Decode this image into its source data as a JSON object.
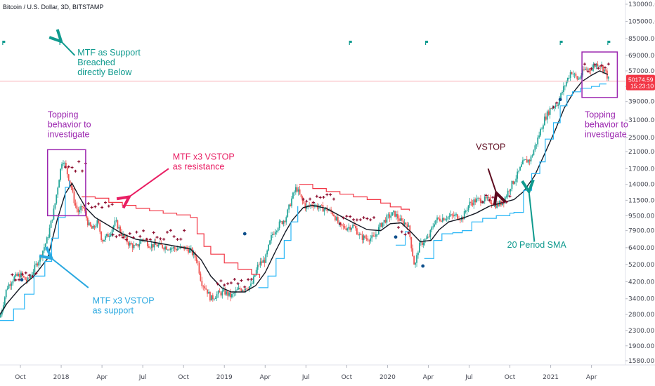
{
  "chart_data": {
    "type": "candlestick",
    "title": "Bitcoin / U.S. Dollar, 3D, BITSTAMP",
    "y_scale": "log",
    "ylim": [
      1500,
      130000
    ],
    "y_ticks": [
      "130000.00",
      "105000.00",
      "85000.00",
      "69000.00",
      "57000.00",
      "47000.00",
      "39000.00",
      "31000.00",
      "25000.00",
      "21000.00",
      "17000.00",
      "14000.00",
      "11500.00",
      "9500.00",
      "7900.00",
      "6400.00",
      "5200.00",
      "4200.00",
      "3400.00",
      "2800.00",
      "2300.00",
      "1900.00",
      "1580.00"
    ],
    "x_ticks": [
      "Oct",
      "2018",
      "Apr",
      "Jul",
      "Oct",
      "2019",
      "Apr",
      "Jul",
      "Oct",
      "2020",
      "Apr",
      "Jul",
      "Oct",
      "2021",
      "Apr"
    ],
    "x_tick_months": [
      0,
      3,
      6,
      9,
      12,
      15,
      18,
      21,
      24,
      27,
      30,
      33,
      36,
      39,
      42
    ],
    "x_range_months": [
      -1.5,
      44.5
    ],
    "last_price": {
      "price": "50174.59",
      "countdown": "15:23:10",
      "value": 50174.59,
      "color": "#f23645"
    },
    "price_series": [
      [
        -1.5,
        2700
      ],
      [
        -1,
        3900
      ],
      [
        -0.5,
        4400
      ],
      [
        0,
        4600
      ],
      [
        0.5,
        4200
      ],
      [
        1,
        4900
      ],
      [
        1.5,
        5800
      ],
      [
        2,
        7200
      ],
      [
        2.5,
        10500
      ],
      [
        2.8,
        14500
      ],
      [
        3.1,
        19500
      ],
      [
        3.4,
        16500
      ],
      [
        3.7,
        14000
      ],
      [
        4,
        11000
      ],
      [
        4.3,
        9800
      ],
      [
        4.6,
        10800
      ],
      [
        5,
        8500
      ],
      [
        5.3,
        8000
      ],
      [
        5.7,
        8800
      ],
      [
        6,
        7000
      ],
      [
        6.5,
        7500
      ],
      [
        7,
        8800
      ],
      [
        7.5,
        7500
      ],
      [
        8,
        6700
      ],
      [
        8.5,
        6400
      ],
      [
        9,
        7200
      ],
      [
        9.5,
        6600
      ],
      [
        10,
        6600
      ],
      [
        10.5,
        6500
      ],
      [
        11,
        6400
      ],
      [
        11.5,
        6300
      ],
      [
        12,
        6400
      ],
      [
        12.5,
        6200
      ],
      [
        13,
        5500
      ],
      [
        13.3,
        4200
      ],
      [
        13.7,
        3800
      ],
      [
        14,
        3400
      ],
      [
        14.5,
        3600
      ],
      [
        15,
        3700
      ],
      [
        15.5,
        3500
      ],
      [
        16,
        3800
      ],
      [
        16.5,
        3900
      ],
      [
        17,
        4000
      ],
      [
        17.5,
        5200
      ],
      [
        18,
        5500
      ],
      [
        18.5,
        7500
      ],
      [
        19,
        8500
      ],
      [
        19.5,
        9200
      ],
      [
        20,
        12000
      ],
      [
        20.3,
        13500
      ],
      [
        20.7,
        11500
      ],
      [
        21,
        10500
      ],
      [
        21.5,
        11000
      ],
      [
        22,
        10500
      ],
      [
        22.5,
        10300
      ],
      [
        23,
        9800
      ],
      [
        23.5,
        8300
      ],
      [
        24,
        8200
      ],
      [
        24.5,
        8400
      ],
      [
        25,
        7300
      ],
      [
        25.5,
        7200
      ],
      [
        26,
        7200
      ],
      [
        26.5,
        8500
      ],
      [
        27,
        9300
      ],
      [
        27.5,
        9800
      ],
      [
        28,
        8800
      ],
      [
        28.5,
        8600
      ],
      [
        29,
        5000
      ],
      [
        29.3,
        6500
      ],
      [
        29.7,
        7000
      ],
      [
        30,
        7200
      ],
      [
        30.5,
        9000
      ],
      [
        31,
        9200
      ],
      [
        31.5,
        9400
      ],
      [
        32,
        9500
      ],
      [
        32.5,
        9200
      ],
      [
        33,
        11000
      ],
      [
        33.5,
        11500
      ],
      [
        34,
        11600
      ],
      [
        34.5,
        11500
      ],
      [
        35,
        10800
      ],
      [
        35.5,
        11300
      ],
      [
        36,
        13500
      ],
      [
        36.5,
        15500
      ],
      [
        37,
        18500
      ],
      [
        37.5,
        19000
      ],
      [
        38,
        24000
      ],
      [
        38.5,
        31000
      ],
      [
        39,
        36000
      ],
      [
        39.5,
        38000
      ],
      [
        40,
        47000
      ],
      [
        40.5,
        57000
      ],
      [
        41,
        51000
      ],
      [
        41.5,
        58000
      ],
      [
        42,
        59000
      ],
      [
        42.5,
        63000
      ],
      [
        43,
        57000
      ],
      [
        43.3,
        50174
      ]
    ],
    "series": [
      {
        "name": "",
        "role": "sma20",
        "color": "#131722",
        "values": [
          [
            -1.5,
            2800
          ],
          [
            -1,
            3200
          ],
          [
            0,
            3900
          ],
          [
            1,
            4500
          ],
          [
            2,
            5600
          ],
          [
            2.7,
            9000
          ],
          [
            3.3,
            12500
          ],
          [
            3.8,
            14200
          ],
          [
            4.2,
            12500
          ],
          [
            4.8,
            10500
          ],
          [
            5.5,
            9300
          ],
          [
            6.5,
            8400
          ],
          [
            7.5,
            7600
          ],
          [
            8.5,
            7100
          ],
          [
            9.5,
            6900
          ],
          [
            10.5,
            6700
          ],
          [
            11.5,
            6500
          ],
          [
            12.5,
            6300
          ],
          [
            13.3,
            5500
          ],
          [
            14,
            4500
          ],
          [
            14.8,
            3900
          ],
          [
            15.5,
            3700
          ],
          [
            16.5,
            3700
          ],
          [
            17.3,
            4000
          ],
          [
            18,
            4700
          ],
          [
            18.8,
            6200
          ],
          [
            19.5,
            7800
          ],
          [
            20,
            9000
          ],
          [
            20.8,
            10500
          ],
          [
            21.5,
            10800
          ],
          [
            22.5,
            10400
          ],
          [
            23.5,
            9500
          ],
          [
            24.5,
            8700
          ],
          [
            25.5,
            8000
          ],
          [
            26.5,
            7900
          ],
          [
            27.2,
            8600
          ],
          [
            28,
            8700
          ],
          [
            28.7,
            7800
          ],
          [
            29.4,
            6900
          ],
          [
            30.2,
            7000
          ],
          [
            30.8,
            8000
          ],
          [
            31.5,
            8800
          ],
          [
            32.5,
            9200
          ],
          [
            33.5,
            9800
          ],
          [
            34.5,
            10700
          ],
          [
            35.5,
            11200
          ],
          [
            36.3,
            11600
          ],
          [
            37,
            12800
          ],
          [
            37.8,
            15500
          ],
          [
            38.5,
            20000
          ],
          [
            39.3,
            27000
          ],
          [
            40,
            36000
          ],
          [
            40.7,
            44000
          ],
          [
            41.3,
            50000
          ],
          [
            42,
            54000
          ],
          [
            42.6,
            57000
          ],
          [
            43.2,
            54500
          ]
        ]
      },
      {
        "name": "",
        "role": "vstop-resistance",
        "color": "#f23645",
        "values": [
          [
            4.5,
            12000
          ],
          [
            5.5,
            11800
          ],
          [
            6.5,
            11200
          ],
          [
            7.5,
            10800
          ],
          [
            8.5,
            10400
          ],
          [
            9.5,
            10100
          ],
          [
            10.5,
            9800
          ],
          [
            11.5,
            9600
          ],
          [
            12.5,
            9300
          ],
          [
            13,
            7600
          ],
          [
            13.5,
            6500
          ],
          [
            14,
            5900
          ],
          [
            15,
            5300
          ],
          [
            16,
            4900
          ],
          [
            17,
            4600
          ],
          [
            17.6,
            4400
          ]
        ]
      },
      {
        "name": "",
        "role": "vstop-resistance",
        "color": "#f23645",
        "values": [
          [
            20.5,
            14000
          ],
          [
            21.5,
            13300
          ],
          [
            22.5,
            12800
          ],
          [
            23.5,
            12400
          ],
          [
            24.5,
            12000
          ],
          [
            25.5,
            11600
          ],
          [
            26.5,
            11100
          ],
          [
            27.2,
            10600
          ],
          [
            28,
            10300
          ],
          [
            28.6,
            10100
          ]
        ]
      },
      {
        "name": "",
        "role": "vstop-support",
        "color": "#29b6f6",
        "values": [
          [
            -1.5,
            2600
          ],
          [
            -0.5,
            3000
          ],
          [
            0.3,
            3600
          ],
          [
            1,
            4500
          ],
          [
            1.8,
            5400
          ],
          [
            2.3,
            7200
          ],
          [
            2.8,
            9300
          ],
          [
            3.3,
            13500
          ],
          [
            3.6,
            14700
          ]
        ]
      },
      {
        "name": "",
        "role": "vstop-support",
        "color": "#29b6f6",
        "values": [
          [
            17.5,
            3900
          ],
          [
            18.2,
            4500
          ],
          [
            18.8,
            5600
          ],
          [
            19.4,
            7000
          ],
          [
            19.9,
            8800
          ],
          [
            20.4,
            10700
          ]
        ]
      },
      {
        "name": "",
        "role": "vstop-support",
        "color": "#29b6f6",
        "values": [
          [
            27.6,
            6600
          ],
          [
            28.3,
            7800
          ],
          [
            28.6,
            7800
          ]
        ]
      },
      {
        "name": "",
        "role": "vstop-support",
        "color": "#29b6f6",
        "values": [
          [
            29.7,
            5600
          ],
          [
            30.4,
            7000
          ],
          [
            31,
            7600
          ],
          [
            31.8,
            7700
          ],
          [
            32.5,
            7900
          ],
          [
            33.2,
            8800
          ],
          [
            34,
            9200
          ],
          [
            35,
            9500
          ],
          [
            36,
            9800
          ],
          [
            36.3,
            9900
          ],
          [
            37,
            13000
          ],
          [
            37.6,
            16000
          ],
          [
            38.2,
            18500
          ],
          [
            38.6,
            24500
          ],
          [
            39.2,
            30000
          ],
          [
            39.7,
            37000
          ],
          [
            40.2,
            42000
          ],
          [
            40.6,
            44000
          ],
          [
            41.2,
            46000
          ],
          [
            42,
            47000
          ],
          [
            42.6,
            48500
          ],
          [
            43.1,
            48500
          ]
        ]
      }
    ],
    "markers": [
      {
        "x": 0.1,
        "value": 4300,
        "color": "#0d4f8c",
        "shape": "dot"
      },
      {
        "x": 16.5,
        "value": 7600,
        "color": "#0d4f8c",
        "shape": "dot"
      },
      {
        "x": 27.6,
        "value": 7300,
        "color": "#0d4f8c",
        "shape": "dot"
      },
      {
        "x": 29.6,
        "value": 5100,
        "color": "#0d4f8c",
        "shape": "dot"
      },
      {
        "x": 39.7,
        "value": 40000,
        "color": "#0d4f8c",
        "shape": "dot"
      }
    ],
    "flags": [
      {
        "x": -1.3,
        "color": "#0f9a8e"
      },
      {
        "x": 2.9,
        "color": "#0f9a8e"
      },
      {
        "x": 24.2,
        "color": "#0f9a8e"
      },
      {
        "x": 29.8,
        "color": "#0f9a8e"
      },
      {
        "x": 39.7,
        "color": "#0f9a8e"
      },
      {
        "x": 43.2,
        "color": "#0f9a8e"
      }
    ],
    "annotations": [
      {
        "text": [
          "MTF as Support",
          "Breached",
          "directly Below"
        ],
        "color": "#0f9a8e",
        "x": 4.2,
        "value": 69000
      },
      {
        "text": [
          "Topping",
          "behavior to",
          "investigate"
        ],
        "color": "#9c27b0",
        "x": 2.0,
        "value": 32000
      },
      {
        "text": [
          "MTF x3 VSTOP",
          "as resistance"
        ],
        "color": "#e91e63",
        "x": 11.2,
        "value": 19000
      },
      {
        "text": [
          "MTF x3 VSTOP",
          "as support"
        ],
        "color": "#29a8e0",
        "x": 5.3,
        "value": 3200
      },
      {
        "text": [
          "VSTOP"
        ],
        "color": "#5d0a1e",
        "x": 33.5,
        "value": 21500
      },
      {
        "text": [
          "20 Period SMA"
        ],
        "color": "#0f9a8e",
        "x": 35.8,
        "value": 6400
      },
      {
        "text": [
          "Topping",
          "behavior to",
          "investigate"
        ],
        "color": "#9c27b0",
        "x": 41.5,
        "value": 32000
      }
    ]
  }
}
